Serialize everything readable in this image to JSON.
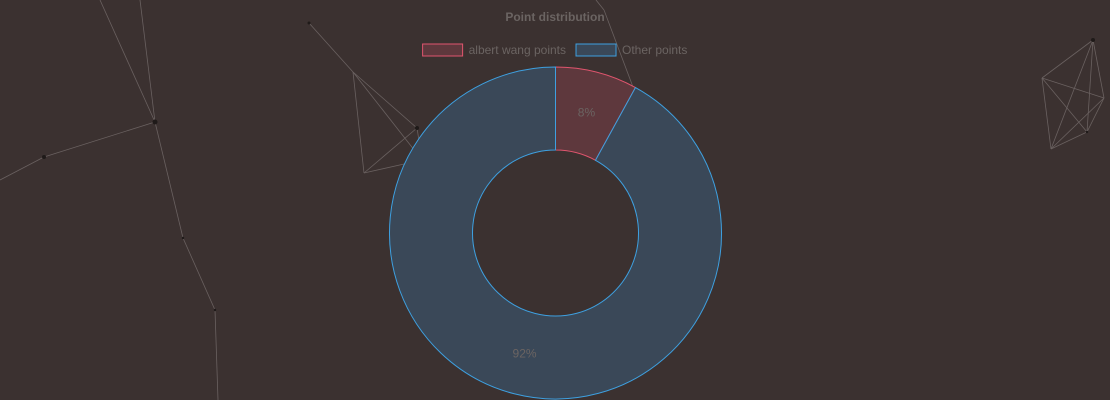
{
  "chart_data": {
    "type": "pie",
    "title": "Point distribution",
    "legend_placement": "top",
    "categories": [
      "albert wang points",
      "Other points"
    ],
    "values": [
      8,
      92
    ],
    "value_labels": [
      "8%",
      "92%"
    ],
    "colors": {
      "fill": [
        "#5e383d",
        "#3a4858"
      ],
      "border": [
        "#e0556e",
        "#3ea0e0"
      ]
    },
    "donut": true
  }
}
